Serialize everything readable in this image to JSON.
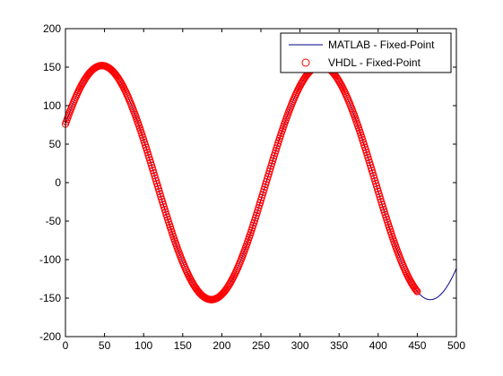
{
  "chart_data": {
    "type": "line",
    "xlim": [
      0,
      500
    ],
    "ylim": [
      -200,
      200
    ],
    "x_ticks": [
      0,
      50,
      100,
      150,
      200,
      250,
      300,
      350,
      400,
      450,
      500
    ],
    "y_ticks": [
      -200,
      -150,
      -100,
      -50,
      0,
      50,
      100,
      150,
      200
    ],
    "grid": false,
    "legend_position": "top-right",
    "series": [
      {
        "name": "MATLAB - Fixed-Point",
        "style": "line",
        "color": "#00008b",
        "x_range": [
          0,
          500
        ],
        "model": {
          "amplitude": 152,
          "period_samples": 280,
          "phase_deg": 60,
          "offset": 0
        }
      },
      {
        "name": "VHDL - Fixed-Point",
        "style": "marker",
        "marker": "circle",
        "color": "#ff0000",
        "x_range": [
          0,
          450
        ],
        "model": {
          "amplitude": 152,
          "period_samples": 280,
          "phase_deg": 60,
          "offset": 0
        }
      }
    ]
  }
}
